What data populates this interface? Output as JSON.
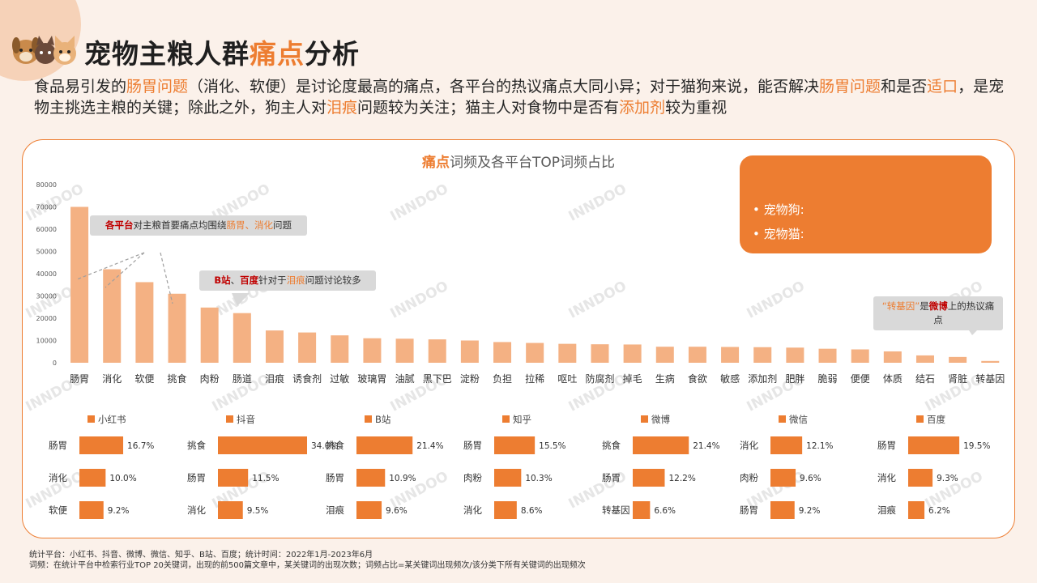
{
  "header": {
    "title_main": "宠物主粮人群",
    "title_highlight": "痛点",
    "title_tail": "分析"
  },
  "intro": [
    {
      "t": "食品易引发的",
      "hl": false
    },
    {
      "t": "肠胃问题",
      "hl": true
    },
    {
      "t": "（消化、软便）是讨论度最高的痛点，各平台的热议痛点大同小异；对于猫狗来说，能否解决",
      "hl": false
    },
    {
      "t": "肠胃问题",
      "hl": true
    },
    {
      "t": "和是否",
      "hl": false
    },
    {
      "t": "适口",
      "hl": true
    },
    {
      "t": "，是宠物主挑选主粮的关键；除此之外，狗主人对",
      "hl": false
    },
    {
      "t": "泪痕",
      "hl": true
    },
    {
      "t": "问题较为关注；猫主人对食物中是否有",
      "hl": false
    },
    {
      "t": "添加剂",
      "hl": true
    },
    {
      "t": "较为重视",
      "hl": false
    }
  ],
  "chart_title_hl": "痛点",
  "chart_title_rest": "词频及各平台TOP词频占比",
  "info_box": {
    "dog_label": "•  宠物狗:",
    "cat_label": "•  宠物猫:"
  },
  "callouts": {
    "c1": [
      {
        "t": "各平台",
        "c": "red"
      },
      {
        "t": "对主粮首要痛点均围绕",
        "c": ""
      },
      {
        "t": "肠胃、消化",
        "c": "org"
      },
      {
        "t": "问题",
        "c": ""
      }
    ],
    "c2": [
      {
        "t": "B站",
        "c": "red"
      },
      {
        "t": "、",
        "c": ""
      },
      {
        "t": "百度",
        "c": "red"
      },
      {
        "t": "针对于",
        "c": ""
      },
      {
        "t": "泪痕",
        "c": "org"
      },
      {
        "t": "问题讨论较多",
        "c": ""
      }
    ],
    "c3": [
      {
        "t": "“转基因”",
        "c": "org"
      },
      {
        "t": "是",
        "c": ""
      },
      {
        "t": "微博",
        "c": "red"
      },
      {
        "t": "上的热议痛点",
        "c": ""
      }
    ]
  },
  "colors": {
    "accent": "#ed7d31",
    "main_bar": "#f4b183",
    "platform_bar": "#ed7d31"
  },
  "chart_data": [
    {
      "type": "bar",
      "title": "痛点词频及各平台TOP词频占比",
      "categories": [
        "肠胃",
        "消化",
        "软便",
        "挑食",
        "肉粉",
        "肠道",
        "泪痕",
        "诱食剂",
        "过敏",
        "玻璃胃",
        "油腻",
        "黑下巴",
        "淀粉",
        "负担",
        "拉稀",
        "呕吐",
        "防腐剂",
        "掉毛",
        "生病",
        "食欲",
        "敏感",
        "添加剂",
        "肥胖",
        "脆弱",
        "便便",
        "体质",
        "结石",
        "肾脏",
        "转基因"
      ],
      "values": [
        70000,
        42000,
        36200,
        31000,
        24800,
        22300,
        14500,
        13600,
        12300,
        11000,
        10800,
        10500,
        10000,
        9300,
        8900,
        8500,
        8300,
        8200,
        7200,
        7200,
        7100,
        7000,
        6800,
        6300,
        6000,
        5100,
        3300,
        2600,
        800
      ],
      "ylim": [
        0,
        80000
      ],
      "yticks": [
        "0",
        "10000",
        "20000",
        "30000",
        "40000",
        "50000",
        "60000",
        "70000",
        "80000"
      ]
    },
    {
      "type": "bar",
      "orientation": "horizontal",
      "series_name": "小红书",
      "categories": [
        "肠胃",
        "消化",
        "软便"
      ],
      "values": [
        16.7,
        10.0,
        9.2
      ],
      "labels": [
        "16.7%",
        "10.0%",
        "9.2%"
      ]
    },
    {
      "type": "bar",
      "orientation": "horizontal",
      "series_name": "抖音",
      "categories": [
        "挑食",
        "肠胃",
        "消化"
      ],
      "values": [
        34.0,
        11.5,
        9.5
      ],
      "labels": [
        "34.0%",
        "11.5%",
        "9.5%"
      ]
    },
    {
      "type": "bar",
      "orientation": "horizontal",
      "series_name": "B站",
      "categories": [
        "挑食",
        "肠胃",
        "泪痕"
      ],
      "values": [
        21.4,
        10.9,
        9.6
      ],
      "labels": [
        "21.4%",
        "10.9%",
        "9.6%"
      ]
    },
    {
      "type": "bar",
      "orientation": "horizontal",
      "series_name": "知乎",
      "categories": [
        "肠胃",
        "肉粉",
        "消化"
      ],
      "values": [
        15.5,
        10.3,
        8.6
      ],
      "labels": [
        "15.5%",
        "10.3%",
        "8.6%"
      ]
    },
    {
      "type": "bar",
      "orientation": "horizontal",
      "series_name": "微博",
      "categories": [
        "挑食",
        "肠胃",
        "转基因"
      ],
      "values": [
        21.4,
        12.2,
        6.6
      ],
      "labels": [
        "21.4%",
        "12.2%",
        "6.6%"
      ]
    },
    {
      "type": "bar",
      "orientation": "horizontal",
      "series_name": "微信",
      "categories": [
        "消化",
        "肉粉",
        "肠胃"
      ],
      "values": [
        12.1,
        9.6,
        9.2
      ],
      "labels": [
        "12.1%",
        "9.6%",
        "9.2%"
      ]
    },
    {
      "type": "bar",
      "orientation": "horizontal",
      "series_name": "百度",
      "categories": [
        "肠胃",
        "消化",
        "泪痕"
      ],
      "values": [
        19.5,
        9.3,
        6.2
      ],
      "labels": [
        "19.5%",
        "9.3%",
        "6.2%"
      ]
    }
  ],
  "footnotes": {
    "line1": "统计平台：小红书、抖音、微博、微信、知乎、B站、百度；统计时间：2022年1月-2023年6月",
    "line2": "词频：在统计平台中检索行业TOP 20关键词，出现的前500篇文章中，某关键词的出现次数；词频占比=某关键词出现频次/该分类下所有关键词的出现频次"
  },
  "watermark": "INNDOO"
}
